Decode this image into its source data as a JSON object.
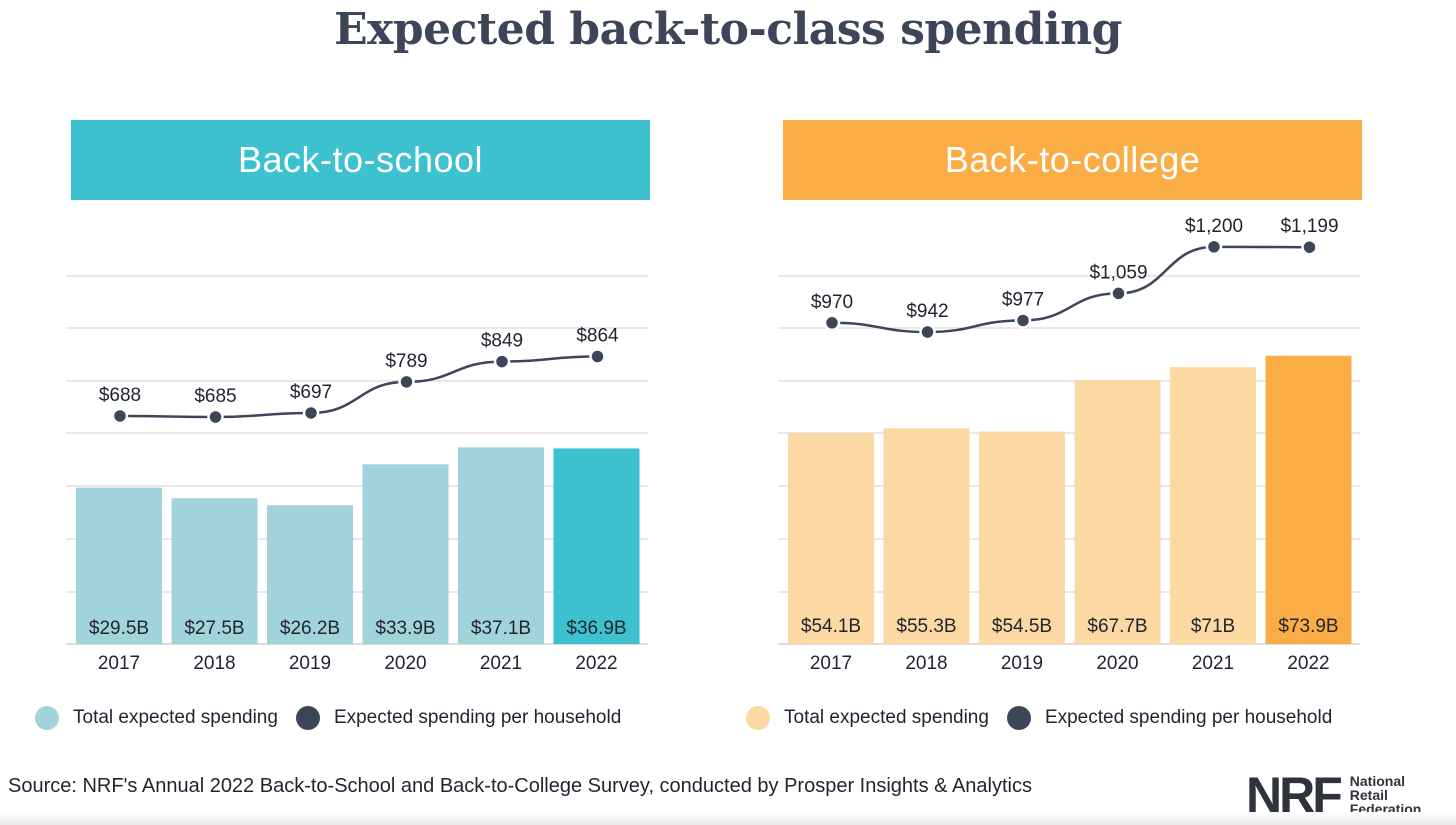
{
  "title": "Expected back-to-class spending",
  "chart_data": [
    {
      "type": "bar",
      "title": "Back-to-school",
      "categories": [
        "2017",
        "2018",
        "2019",
        "2020",
        "2021",
        "2022"
      ],
      "series": [
        {
          "name": "Total expected spending",
          "values": [
            29.5,
            27.5,
            26.2,
            33.9,
            37.1,
            36.9
          ],
          "labels": [
            "$29.5B",
            "$27.5B",
            "$26.2B",
            "$33.9B",
            "$37.1B",
            "$36.9B"
          ]
        },
        {
          "name": "Expected spending per household",
          "type": "line",
          "values": [
            688,
            685,
            697,
            789,
            849,
            864
          ],
          "labels": [
            "$688",
            "$685",
            "$697",
            "$789",
            "$849",
            "$864"
          ]
        }
      ],
      "highlight_index": 5,
      "colors": {
        "header": "#3ec1cf",
        "bar": "#a0d3da",
        "bar_highlight": "#3ec1cf",
        "line": "#3d4658",
        "legend_bar": "#a0d3da",
        "legend_line": "#3d4658"
      },
      "legend": [
        "Total expected spending",
        "Expected spending per household"
      ]
    },
    {
      "type": "bar",
      "title": "Back-to-college",
      "categories": [
        "2017",
        "2018",
        "2019",
        "2020",
        "2021",
        "2022"
      ],
      "series": [
        {
          "name": "Total expected spending",
          "values": [
            54.1,
            55.3,
            54.5,
            67.7,
            71,
            73.9
          ],
          "labels": [
            "$54.1B",
            "$55.3B",
            "$54.5B",
            "$67.7B",
            "$71B",
            "$73.9B"
          ]
        },
        {
          "name": "Expected spending per household",
          "type": "line",
          "values": [
            970,
            942,
            977,
            1059,
            1200,
            1199
          ],
          "labels": [
            "$970",
            "$942",
            "$977",
            "$1,059",
            "$1,200",
            "$1,199"
          ]
        }
      ],
      "highlight_index": 5,
      "colors": {
        "header": "#f9ad44",
        "bar": "#fcd9a3",
        "bar_highlight": "#f9ad44",
        "line": "#3d4658",
        "legend_bar": "#fcd9a3",
        "legend_line": "#3d4658"
      },
      "legend": [
        "Total expected spending",
        "Expected spending per household"
      ]
    }
  ],
  "source": "Source: NRF's Annual 2022 Back-to-School and Back-to-College Survey, conducted by Prosper Insights & Analytics",
  "logo": {
    "mark": "NRF",
    "lines": [
      "National",
      "Retail",
      "Federation"
    ]
  }
}
